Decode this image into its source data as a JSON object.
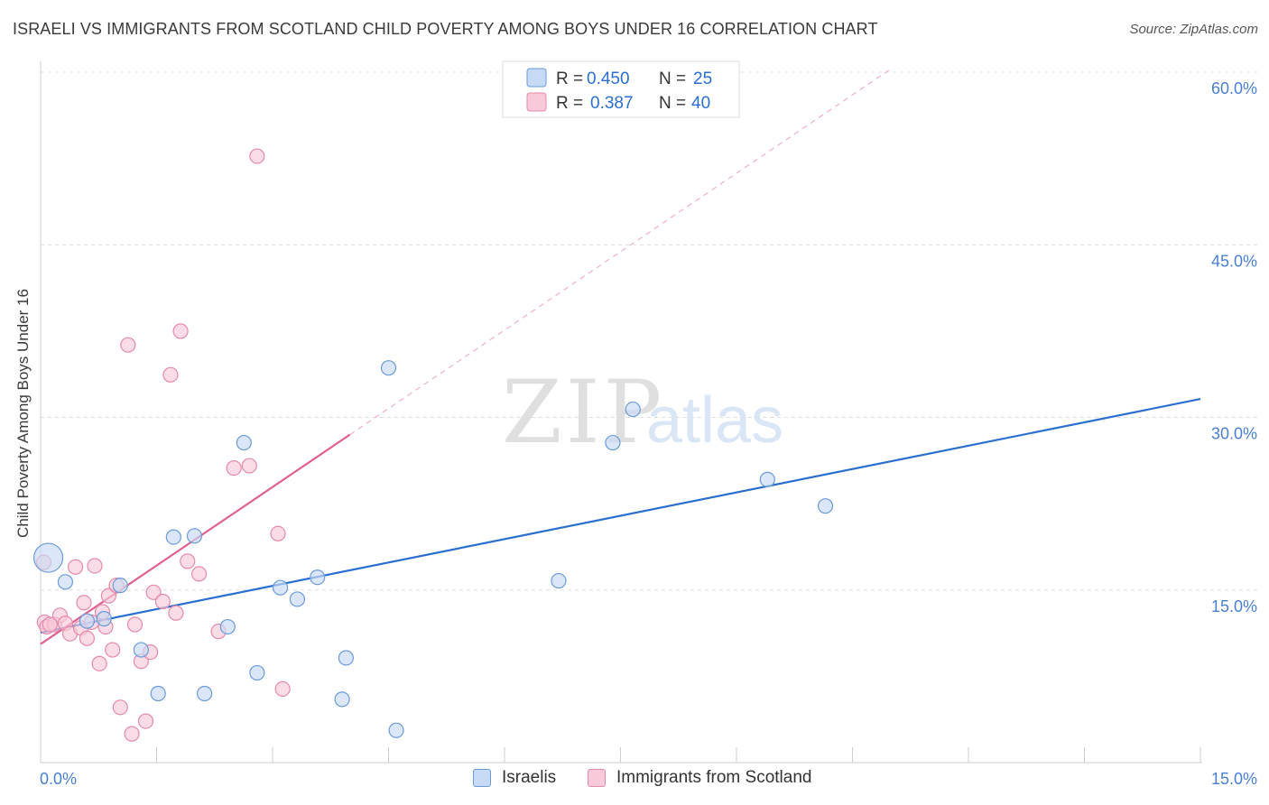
{
  "chart_data": {
    "type": "scatter",
    "title": "ISRAELI VS IMMIGRANTS FROM SCOTLAND CHILD POVERTY AMONG BOYS UNDER 16 CORRELATION CHART",
    "source": "Source: ZipAtlas.com",
    "ylabel": "Child Poverty Among Boys Under 16",
    "xlabel": "",
    "xlim": [
      0,
      15
    ],
    "ylim": [
      0,
      60
    ],
    "x_tick_labels": [
      "0.0%",
      "15.0%"
    ],
    "y_tick_labels": [
      "15.0%",
      "30.0%",
      "45.0%",
      "60.0%"
    ],
    "y_tick_values": [
      15,
      30,
      45,
      60
    ],
    "watermark": {
      "zip": "ZIP",
      "atlas": "atlas"
    },
    "legend": {
      "rows": [
        {
          "r_label": "R =",
          "r_value": "0.450",
          "n_label": "N =",
          "n_value": "25"
        },
        {
          "r_label": "R =",
          "r_value": "0.387",
          "n_label": "N =",
          "n_value": "40"
        }
      ]
    },
    "colors": {
      "israelis_fill": "#c7daf5",
      "israelis_stroke": "#6a9ad8",
      "israelis_line": "#2a6fd0",
      "scotland_fill": "#f8c9d8",
      "scotland_stroke": "#e58aa8",
      "scotland_line": "#e06090",
      "value_text": "#2a6fd0",
      "grid": "#dddddd"
    },
    "series": [
      {
        "name": "Israelis",
        "trend": {
          "x0": 0,
          "y0": 11.3,
          "x1": 15,
          "y1": 31.6
        },
        "points": [
          {
            "x": 0.1,
            "y": 17.8,
            "big": true
          },
          {
            "x": 0.32,
            "y": 15.7
          },
          {
            "x": 0.6,
            "y": 12.3
          },
          {
            "x": 0.82,
            "y": 12.5
          },
          {
            "x": 1.03,
            "y": 15.4
          },
          {
            "x": 1.3,
            "y": 9.8
          },
          {
            "x": 1.52,
            "y": 6.0
          },
          {
            "x": 1.72,
            "y": 19.6
          },
          {
            "x": 1.99,
            "y": 19.7
          },
          {
            "x": 2.12,
            "y": 6.0
          },
          {
            "x": 2.42,
            "y": 11.8
          },
          {
            "x": 2.63,
            "y": 27.8
          },
          {
            "x": 2.8,
            "y": 7.8
          },
          {
            "x": 3.1,
            "y": 15.2
          },
          {
            "x": 3.32,
            "y": 14.2
          },
          {
            "x": 3.58,
            "y": 16.1
          },
          {
            "x": 3.9,
            "y": 5.5
          },
          {
            "x": 3.95,
            "y": 9.1
          },
          {
            "x": 4.5,
            "y": 34.3
          },
          {
            "x": 4.6,
            "y": 2.8
          },
          {
            "x": 6.7,
            "y": 15.8
          },
          {
            "x": 7.4,
            "y": 27.8
          },
          {
            "x": 7.66,
            "y": 30.7
          },
          {
            "x": 9.4,
            "y": 24.6
          },
          {
            "x": 10.15,
            "y": 22.3
          }
        ]
      },
      {
        "name": "Immigrants from Scotland",
        "trend": {
          "x0": 0,
          "y0": 10.3,
          "x1": 4.0,
          "y1": 28.5,
          "x1_dash": 11.0,
          "y1_dash": 60.3
        },
        "points": [
          {
            "x": 0.04,
            "y": 17.4
          },
          {
            "x": 0.05,
            "y": 12.2
          },
          {
            "x": 0.08,
            "y": 11.8
          },
          {
            "x": 0.18,
            "y": 12.0
          },
          {
            "x": 0.25,
            "y": 12.8
          },
          {
            "x": 0.32,
            "y": 12.1
          },
          {
            "x": 0.38,
            "y": 11.2
          },
          {
            "x": 0.45,
            "y": 17.0
          },
          {
            "x": 0.52,
            "y": 11.7
          },
          {
            "x": 0.56,
            "y": 13.9
          },
          {
            "x": 0.6,
            "y": 10.8
          },
          {
            "x": 0.66,
            "y": 12.2
          },
          {
            "x": 0.7,
            "y": 17.1
          },
          {
            "x": 0.76,
            "y": 8.6
          },
          {
            "x": 0.8,
            "y": 13.1
          },
          {
            "x": 0.84,
            "y": 11.8
          },
          {
            "x": 0.88,
            "y": 14.5
          },
          {
            "x": 0.93,
            "y": 9.8
          },
          {
            "x": 0.98,
            "y": 15.4
          },
          {
            "x": 1.03,
            "y": 4.8
          },
          {
            "x": 1.13,
            "y": 36.3
          },
          {
            "x": 1.18,
            "y": 2.5
          },
          {
            "x": 1.22,
            "y": 12.0
          },
          {
            "x": 1.3,
            "y": 8.8
          },
          {
            "x": 1.36,
            "y": 3.6
          },
          {
            "x": 1.42,
            "y": 9.6
          },
          {
            "x": 1.46,
            "y": 14.8
          },
          {
            "x": 1.58,
            "y": 14.0
          },
          {
            "x": 1.68,
            "y": 33.7
          },
          {
            "x": 1.75,
            "y": 13.0
          },
          {
            "x": 1.81,
            "y": 37.5
          },
          {
            "x": 1.9,
            "y": 17.5
          },
          {
            "x": 2.05,
            "y": 16.4
          },
          {
            "x": 2.3,
            "y": 11.4
          },
          {
            "x": 2.5,
            "y": 25.6
          },
          {
            "x": 2.7,
            "y": 25.8
          },
          {
            "x": 2.8,
            "y": 52.7
          },
          {
            "x": 3.07,
            "y": 19.9
          },
          {
            "x": 3.13,
            "y": 6.4
          },
          {
            "x": 0.12,
            "y": 12.0
          }
        ]
      }
    ]
  },
  "bottom_legend": {
    "israelis": "Israelis",
    "scotland": "Immigrants from Scotland"
  }
}
